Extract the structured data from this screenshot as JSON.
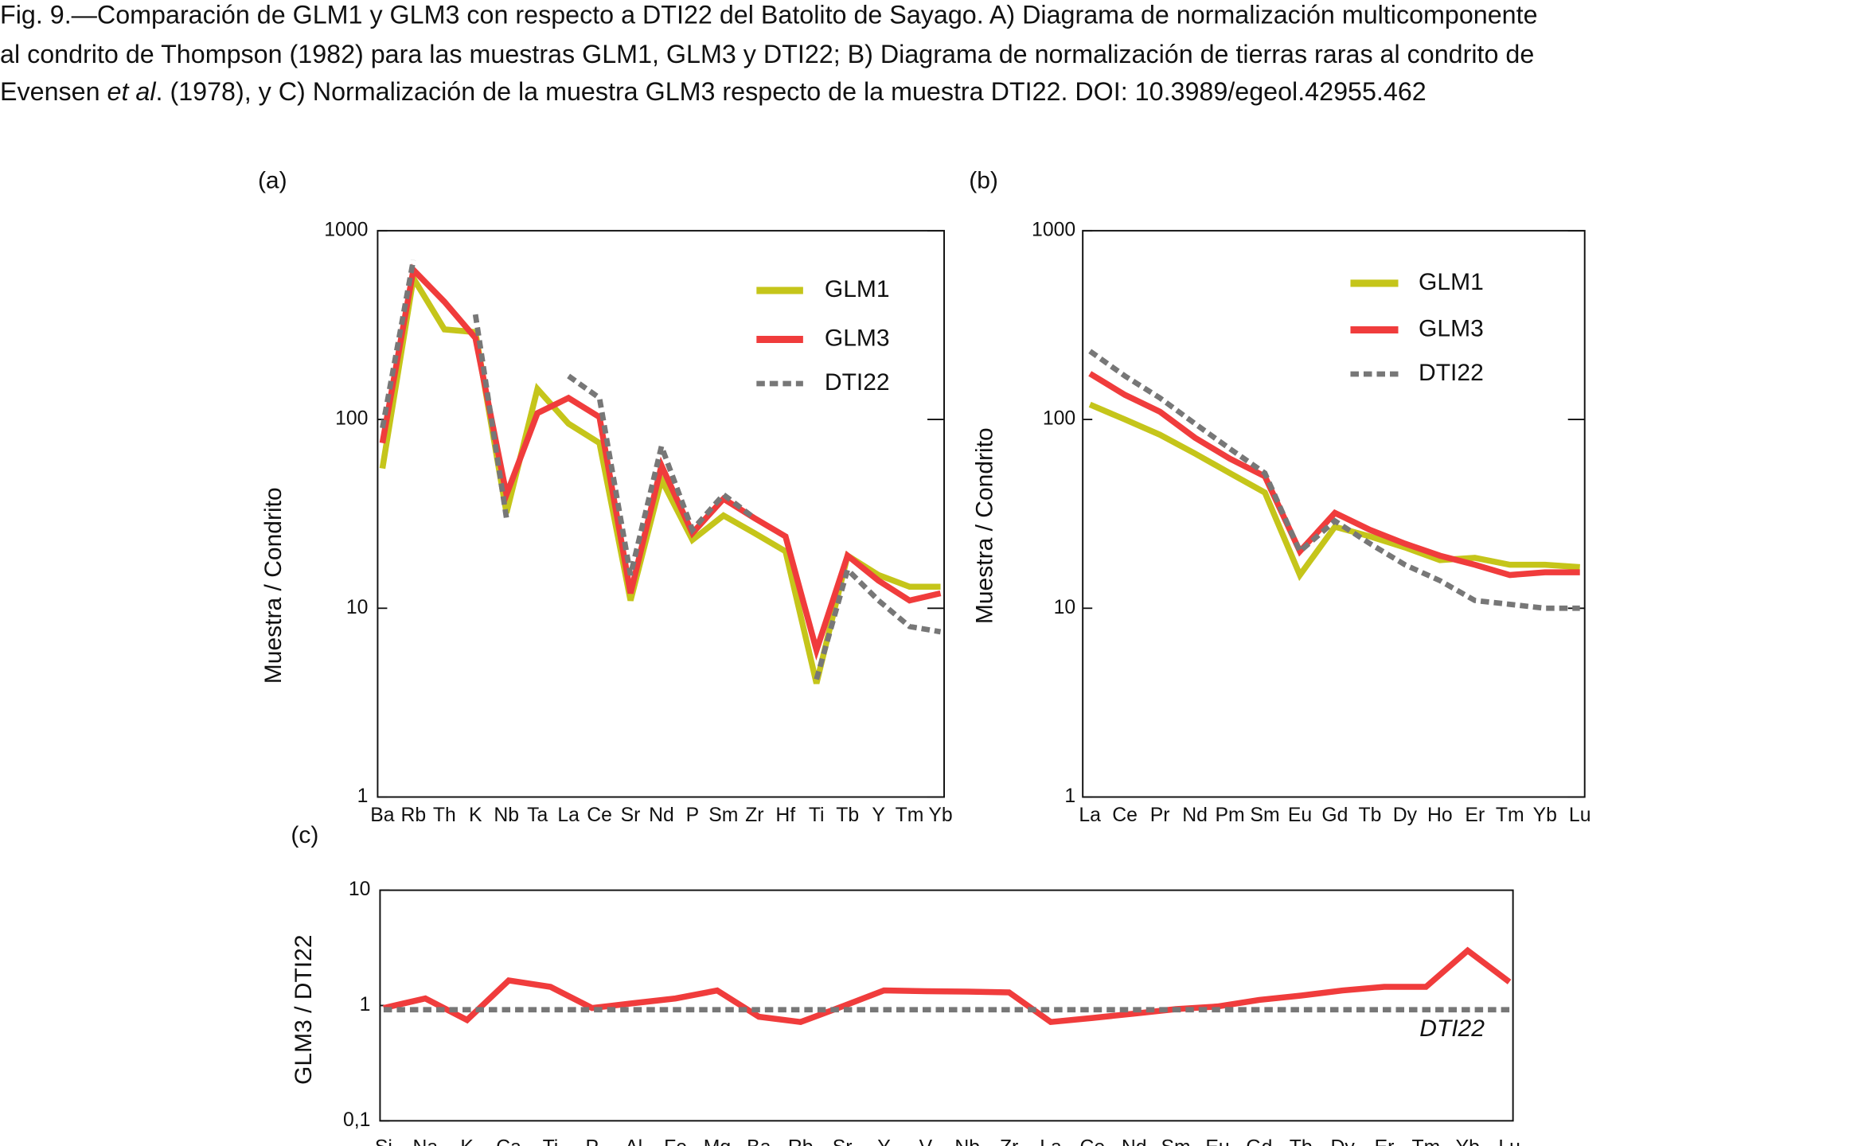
{
  "caption": [
    "Fig. 9.—Comparación de GLM1 y GLM3 con respecto a DTI22 del Batolito de Sayago. A) Diagrama de normalización multicomponente",
    "al condrito de Thompson (1982) para las muestras GLM1, GLM3 y DTI22; B) Diagrama de normalización de tierras raras al condrito de",
    [
      "Evensen ",
      "et al",
      ". (1978), y C) Normalización de la muestra GLM3 respecto de la muestra DTI22. DOI: 10.3989/egeol.42955.462"
    ]
  ],
  "chart_data": [
    {
      "type": "line",
      "panel": "(a)",
      "y_label": "Muestra / Condrito",
      "log_y": true,
      "legend": "upper right",
      "categories": [
        "Ba",
        "Rb",
        "Th",
        "K",
        "Nb",
        "Ta",
        "La",
        "Ce",
        "Sr",
        "Nd",
        "P",
        "Sm",
        "Zr",
        "Hf",
        "Ti",
        "Tb",
        "Y",
        "Tm",
        "Yb"
      ],
      "ylim": [
        1,
        1000
      ],
      "yticks": [
        1,
        10,
        100,
        1000
      ],
      "series": [
        {
          "name": "GLM1",
          "color": "#c5c51a",
          "style": "solid",
          "values": [
            55,
            560,
            300,
            290,
            32,
            145,
            95,
            75,
            11,
            48,
            23,
            31,
            25,
            20,
            4,
            19,
            15,
            13,
            13
          ]
        },
        {
          "name": "GLM3",
          "color": "#f03c3c",
          "style": "solid",
          "values": [
            75,
            620,
            420,
            270,
            40,
            108,
            130,
            103,
            12,
            57,
            25,
            38,
            30,
            24,
            6,
            19,
            14,
            11,
            12
          ]
        },
        {
          "name": "DTI22",
          "color": "#777777",
          "style": "dashed",
          "values": [
            90,
            700,
            null,
            360,
            30,
            null,
            170,
            130,
            15,
            72,
            26,
            40,
            30,
            null,
            4.2,
            16,
            11,
            8,
            7.5
          ]
        }
      ]
    },
    {
      "type": "line",
      "panel": "(b)",
      "y_label": "Muestra / Condrito",
      "log_y": true,
      "legend": "upper right",
      "categories": [
        "La",
        "Ce",
        "Pr",
        "Nd",
        "Pm",
        "Sm",
        "Eu",
        "Gd",
        "Tb",
        "Dy",
        "Ho",
        "Er",
        "Tm",
        "Yb",
        "Lu"
      ],
      "ylim": [
        1,
        1000
      ],
      "yticks": [
        1,
        10,
        100,
        1000
      ],
      "series": [
        {
          "name": "GLM1",
          "color": "#c5c51a",
          "style": "solid",
          "values": [
            120,
            100,
            83,
            66,
            52,
            41,
            15,
            27,
            24,
            21,
            18,
            18.5,
            17,
            17,
            16.5
          ]
        },
        {
          "name": "GLM3",
          "color": "#f03c3c",
          "style": "solid",
          "values": [
            175,
            135,
            110,
            80,
            62,
            50,
            20,
            32,
            26,
            22,
            19,
            17,
            15,
            15.5,
            15.5
          ]
        },
        {
          "name": "DTI22",
          "color": "#777777",
          "style": "dashed",
          "values": [
            230,
            170,
            130,
            95,
            70,
            52,
            20,
            29,
            22,
            17,
            14,
            11,
            10.5,
            10,
            10
          ]
        }
      ]
    },
    {
      "type": "line",
      "panel": "(c)",
      "y_label": "GLM3 /  DTI22",
      "log_y": true,
      "annotation": "DTI22",
      "categories": [
        "Si",
        "Na",
        "K",
        "Ca",
        "Ti",
        "P",
        "Al",
        "Fe",
        "Mg",
        "Ba",
        "Rb",
        "Sr",
        "Y",
        "V",
        "Nb",
        "Zr",
        "La",
        "Ce",
        "Nd",
        "Sm",
        "Eu",
        "Gd",
        "Tb",
        "Dy",
        "Er",
        "Tm",
        "Yb",
        "Lu"
      ],
      "ylim": [
        0.1,
        10
      ],
      "yticks": [
        {
          "value": 0.1,
          "label": "0,1"
        },
        1,
        10
      ],
      "series": [
        {
          "name": "GLM3",
          "color": "#f03c3c",
          "style": "solid",
          "values": [
            0.95,
            1.15,
            0.75,
            1.65,
            1.45,
            0.95,
            1.05,
            1.15,
            1.35,
            0.8,
            0.72,
            0.98,
            1.35,
            1.33,
            1.32,
            1.3,
            0.72,
            0.78,
            0.85,
            0.93,
            0.98,
            1.12,
            1.22,
            1.35,
            1.45,
            1.45,
            3.0,
            1.6
          ]
        },
        {
          "name": "DTI22",
          "color": "#777777",
          "style": "dashed",
          "values": [
            0.92,
            0.92,
            0.92,
            0.92,
            0.92,
            0.92,
            0.92,
            0.92,
            0.92,
            0.92,
            0.92,
            0.92,
            0.92,
            0.92,
            0.92,
            0.92,
            0.92,
            0.92,
            0.92,
            0.92,
            0.92,
            0.92,
            0.92,
            0.92,
            0.92,
            0.92,
            0.92,
            0.92
          ]
        }
      ]
    }
  ]
}
